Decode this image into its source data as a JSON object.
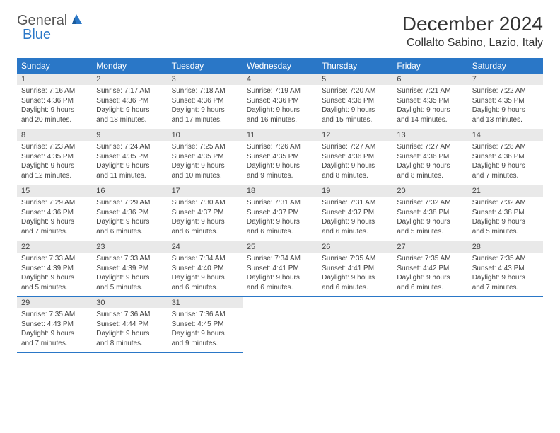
{
  "logo": {
    "text1": "General",
    "text2": "Blue"
  },
  "title": "December 2024",
  "location": "Collalto Sabino, Lazio, Italy",
  "header_bg": "#2a77c7",
  "header_fg": "#ffffff",
  "daynum_bg": "#e9e9e9",
  "border_color": "#2a77c7",
  "text_color": "#444444",
  "font_family": "Arial, Helvetica, sans-serif",
  "daynames": [
    "Sunday",
    "Monday",
    "Tuesday",
    "Wednesday",
    "Thursday",
    "Friday",
    "Saturday"
  ],
  "days": [
    {
      "n": "1",
      "sr": "7:16 AM",
      "ss": "4:36 PM",
      "dl": "9 hours and 20 minutes."
    },
    {
      "n": "2",
      "sr": "7:17 AM",
      "ss": "4:36 PM",
      "dl": "9 hours and 18 minutes."
    },
    {
      "n": "3",
      "sr": "7:18 AM",
      "ss": "4:36 PM",
      "dl": "9 hours and 17 minutes."
    },
    {
      "n": "4",
      "sr": "7:19 AM",
      "ss": "4:36 PM",
      "dl": "9 hours and 16 minutes."
    },
    {
      "n": "5",
      "sr": "7:20 AM",
      "ss": "4:36 PM",
      "dl": "9 hours and 15 minutes."
    },
    {
      "n": "6",
      "sr": "7:21 AM",
      "ss": "4:35 PM",
      "dl": "9 hours and 14 minutes."
    },
    {
      "n": "7",
      "sr": "7:22 AM",
      "ss": "4:35 PM",
      "dl": "9 hours and 13 minutes."
    },
    {
      "n": "8",
      "sr": "7:23 AM",
      "ss": "4:35 PM",
      "dl": "9 hours and 12 minutes."
    },
    {
      "n": "9",
      "sr": "7:24 AM",
      "ss": "4:35 PM",
      "dl": "9 hours and 11 minutes."
    },
    {
      "n": "10",
      "sr": "7:25 AM",
      "ss": "4:35 PM",
      "dl": "9 hours and 10 minutes."
    },
    {
      "n": "11",
      "sr": "7:26 AM",
      "ss": "4:35 PM",
      "dl": "9 hours and 9 minutes."
    },
    {
      "n": "12",
      "sr": "7:27 AM",
      "ss": "4:36 PM",
      "dl": "9 hours and 8 minutes."
    },
    {
      "n": "13",
      "sr": "7:27 AM",
      "ss": "4:36 PM",
      "dl": "9 hours and 8 minutes."
    },
    {
      "n": "14",
      "sr": "7:28 AM",
      "ss": "4:36 PM",
      "dl": "9 hours and 7 minutes."
    },
    {
      "n": "15",
      "sr": "7:29 AM",
      "ss": "4:36 PM",
      "dl": "9 hours and 7 minutes."
    },
    {
      "n": "16",
      "sr": "7:29 AM",
      "ss": "4:36 PM",
      "dl": "9 hours and 6 minutes."
    },
    {
      "n": "17",
      "sr": "7:30 AM",
      "ss": "4:37 PM",
      "dl": "9 hours and 6 minutes."
    },
    {
      "n": "18",
      "sr": "7:31 AM",
      "ss": "4:37 PM",
      "dl": "9 hours and 6 minutes."
    },
    {
      "n": "19",
      "sr": "7:31 AM",
      "ss": "4:37 PM",
      "dl": "9 hours and 6 minutes."
    },
    {
      "n": "20",
      "sr": "7:32 AM",
      "ss": "4:38 PM",
      "dl": "9 hours and 5 minutes."
    },
    {
      "n": "21",
      "sr": "7:32 AM",
      "ss": "4:38 PM",
      "dl": "9 hours and 5 minutes."
    },
    {
      "n": "22",
      "sr": "7:33 AM",
      "ss": "4:39 PM",
      "dl": "9 hours and 5 minutes."
    },
    {
      "n": "23",
      "sr": "7:33 AM",
      "ss": "4:39 PM",
      "dl": "9 hours and 5 minutes."
    },
    {
      "n": "24",
      "sr": "7:34 AM",
      "ss": "4:40 PM",
      "dl": "9 hours and 6 minutes."
    },
    {
      "n": "25",
      "sr": "7:34 AM",
      "ss": "4:41 PM",
      "dl": "9 hours and 6 minutes."
    },
    {
      "n": "26",
      "sr": "7:35 AM",
      "ss": "4:41 PM",
      "dl": "9 hours and 6 minutes."
    },
    {
      "n": "27",
      "sr": "7:35 AM",
      "ss": "4:42 PM",
      "dl": "9 hours and 6 minutes."
    },
    {
      "n": "28",
      "sr": "7:35 AM",
      "ss": "4:43 PM",
      "dl": "9 hours and 7 minutes."
    },
    {
      "n": "29",
      "sr": "7:35 AM",
      "ss": "4:43 PM",
      "dl": "9 hours and 7 minutes."
    },
    {
      "n": "30",
      "sr": "7:36 AM",
      "ss": "4:44 PM",
      "dl": "9 hours and 8 minutes."
    },
    {
      "n": "31",
      "sr": "7:36 AM",
      "ss": "4:45 PM",
      "dl": "9 hours and 9 minutes."
    }
  ],
  "labels": {
    "sunrise": "Sunrise:",
    "sunset": "Sunset:",
    "daylight": "Daylight:"
  },
  "layout": {
    "first_day_column": 0,
    "weeks": 5
  }
}
